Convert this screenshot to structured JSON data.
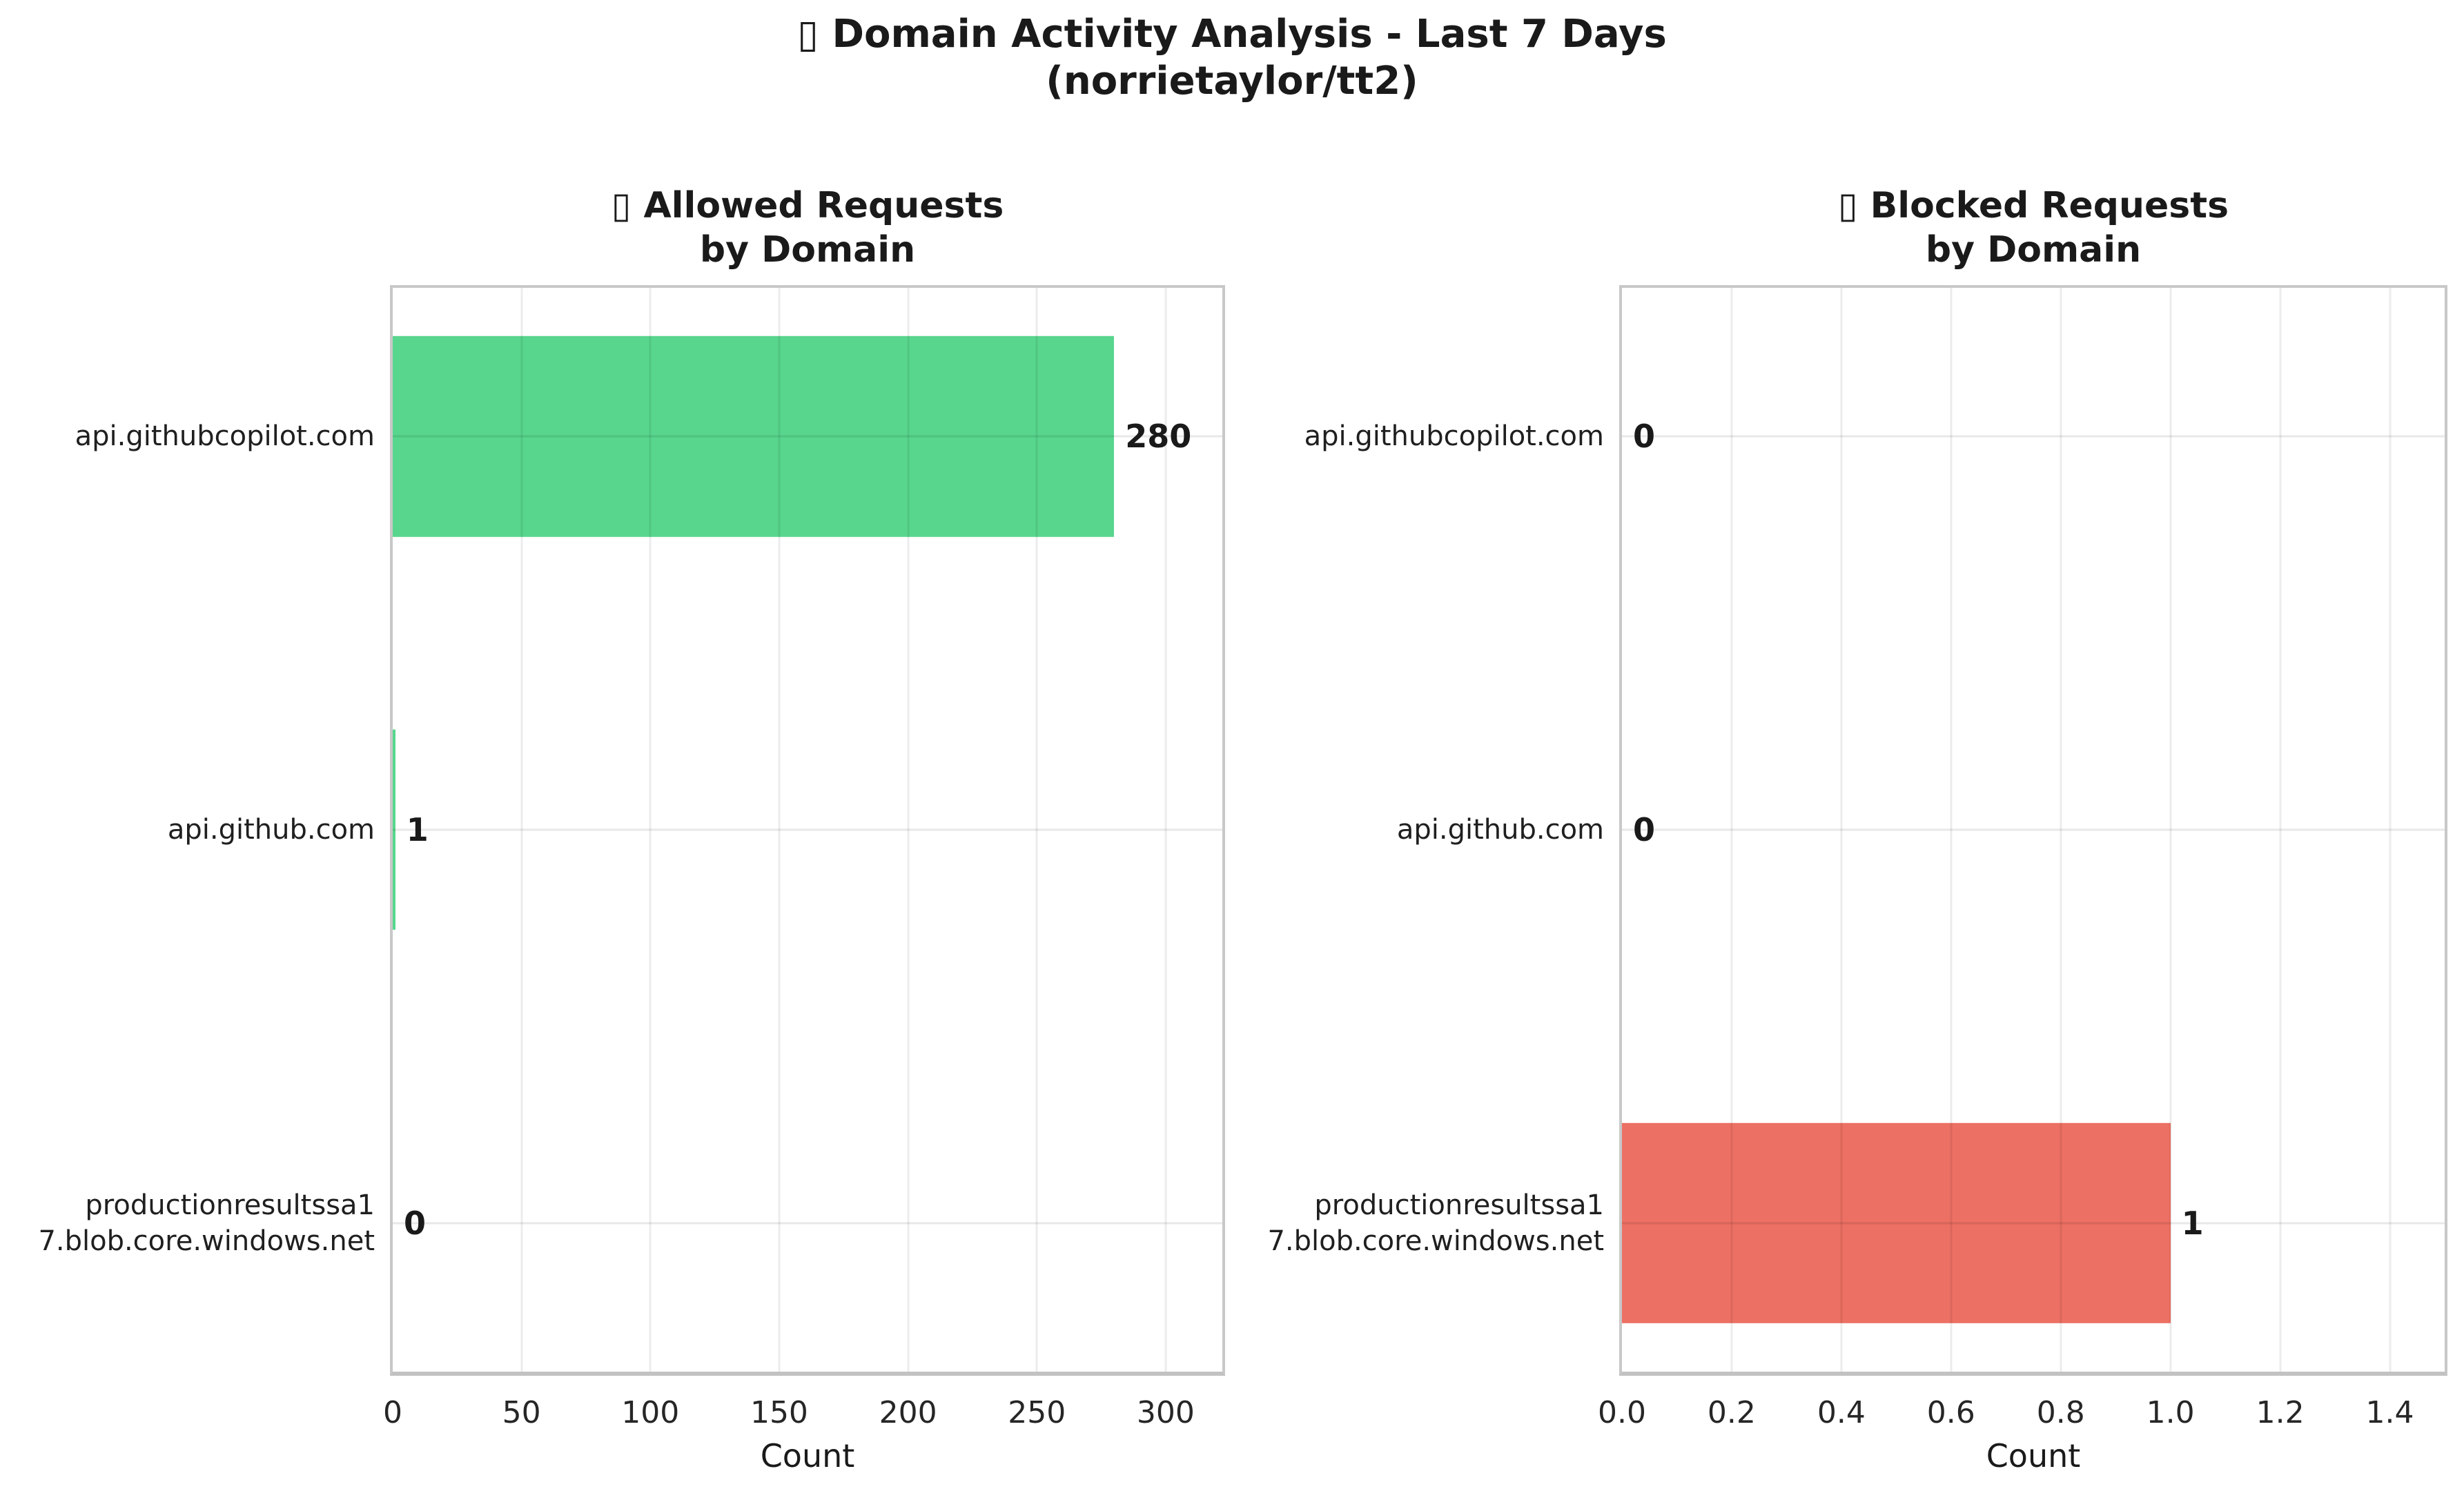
{
  "figure": {
    "suptitle": "▯ Domain Activity Analysis - Last 7 Days\n(norrietaylor/tt2)"
  },
  "chart_data": [
    {
      "type": "bar",
      "orientation": "horizontal",
      "title": "▯ Allowed Requests\nby Domain",
      "categories": [
        "api.githubcopilot.com",
        "api.github.com",
        "productionresultssa1\n7.blob.core.windows.net"
      ],
      "values": [
        280,
        1,
        0
      ],
      "value_labels": [
        "280",
        "1",
        "0"
      ],
      "xlabel": "Count",
      "xlim": [
        0,
        322
      ],
      "xticks": [
        0,
        50,
        100,
        150,
        200,
        250,
        300
      ],
      "xtick_labels": [
        "0",
        "50",
        "100",
        "150",
        "200",
        "250",
        "300"
      ],
      "bar_color": "#58D68D",
      "grid": true,
      "legend": "none"
    },
    {
      "type": "bar",
      "orientation": "horizontal",
      "title": "▯ Blocked Requests\nby Domain",
      "categories": [
        "api.githubcopilot.com",
        "api.github.com",
        "productionresultssa1\n7.blob.core.windows.net"
      ],
      "values": [
        0,
        0,
        1
      ],
      "value_labels": [
        "0",
        "0",
        "1"
      ],
      "xlabel": "Count",
      "xlim": [
        0,
        1.5
      ],
      "xticks": [
        0.0,
        0.2,
        0.4,
        0.6,
        0.8,
        1.0,
        1.2,
        1.4
      ],
      "xtick_labels": [
        "0.0",
        "0.2",
        "0.4",
        "0.6",
        "0.8",
        "1.0",
        "1.2",
        "1.4"
      ],
      "bar_color": "#EC7063",
      "grid": true,
      "legend": "none"
    }
  ],
  "colors": {
    "allowed_bar": "#58D68D",
    "blocked_bar": "#EC7063",
    "grid": "#ECECEC",
    "spine": "#C8C8C8",
    "text": "#1A1A1A"
  }
}
